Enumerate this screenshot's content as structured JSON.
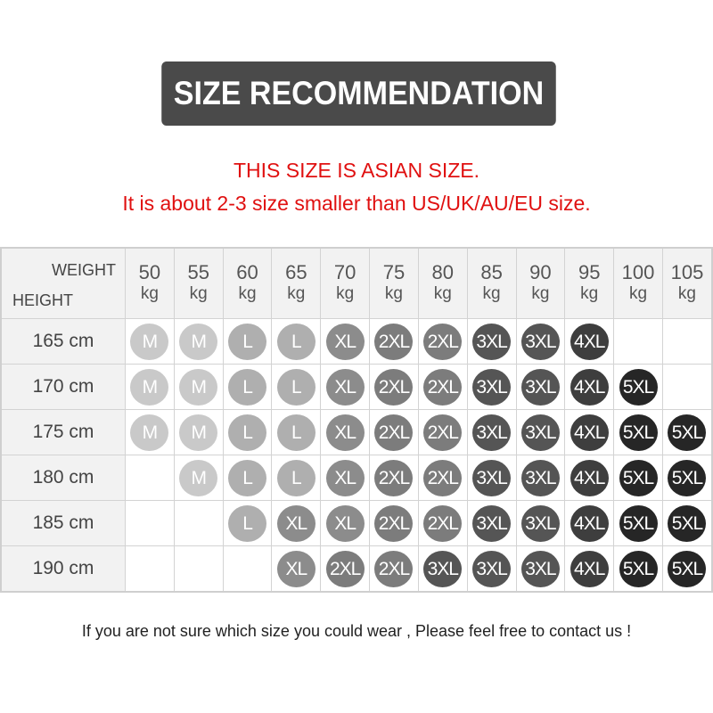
{
  "title": "SIZE RECOMMENDATION",
  "notice_line1": "THIS SIZE IS ASIAN SIZE.",
  "notice_line2": "It is about 2-3 size smaller than US/UK/AU/EU size.",
  "table": {
    "weight_label": "WEIGHT",
    "height_label": "HEIGHT",
    "weight_unit": "kg",
    "weights": [
      "50",
      "55",
      "60",
      "65",
      "70",
      "75",
      "80",
      "85",
      "90",
      "95",
      "100",
      "105"
    ],
    "rows": [
      {
        "height": "165 cm",
        "sizes": [
          "M",
          "M",
          "L",
          "L",
          "XL",
          "2XL",
          "2XL",
          "3XL",
          "3XL",
          "4XL",
          "",
          ""
        ]
      },
      {
        "height": "170 cm",
        "sizes": [
          "M",
          "M",
          "L",
          "L",
          "XL",
          "2XL",
          "2XL",
          "3XL",
          "3XL",
          "4XL",
          "5XL",
          ""
        ]
      },
      {
        "height": "175 cm",
        "sizes": [
          "M",
          "M",
          "L",
          "L",
          "XL",
          "2XL",
          "2XL",
          "3XL",
          "3XL",
          "4XL",
          "5XL",
          "5XL"
        ]
      },
      {
        "height": "180 cm",
        "sizes": [
          "",
          "M",
          "L",
          "L",
          "XL",
          "2XL",
          "2XL",
          "3XL",
          "3XL",
          "4XL",
          "5XL",
          "5XL"
        ]
      },
      {
        "height": "185 cm",
        "sizes": [
          "",
          "",
          "L",
          "XL",
          "XL",
          "2XL",
          "2XL",
          "3XL",
          "3XL",
          "4XL",
          "5XL",
          "5XL"
        ]
      },
      {
        "height": "190 cm",
        "sizes": [
          "",
          "",
          "",
          "XL",
          "2XL",
          "2XL",
          "3XL",
          "3XL",
          "3XL",
          "4XL",
          "5XL",
          "5XL"
        ]
      }
    ]
  },
  "size_colors": {
    "M": "#c9c9c9",
    "L": "#afafaf",
    "XL": "#8c8c8c",
    "2XL": "#7c7c7c",
    "3XL": "#555555",
    "4XL": "#3e3e3e",
    "5XL": "#262626"
  },
  "footer": "If you are not sure which size you could wear , Please feel free to contact us !"
}
